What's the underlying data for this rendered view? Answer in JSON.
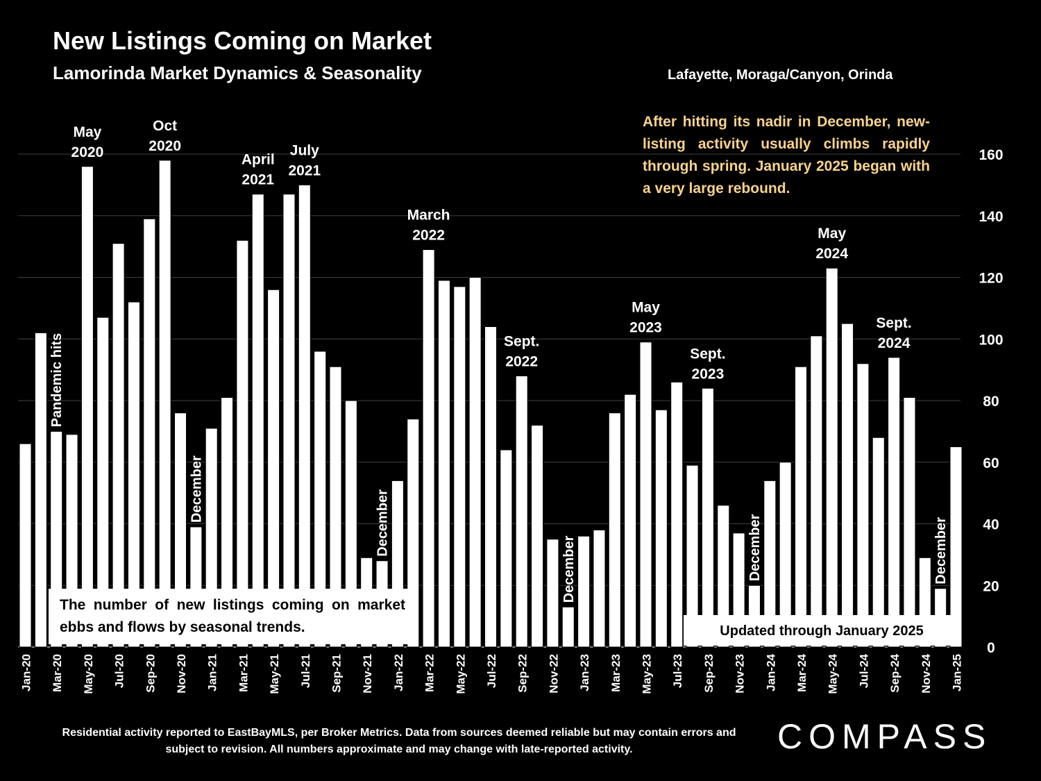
{
  "header": {
    "title": "New Listings Coming on Market",
    "subtitle": "Lamorinda Market Dynamics & Seasonality",
    "region": "Lafayette, Moraga/Canyon, Orinda"
  },
  "insight": "After hitting its nadir in December, new-listing activity usually climbs rapidly through spring. January 2025 began with a very large rebound.",
  "note_box": "The number of new listings coming on market ebbs and flows by seasonal trends.",
  "update_box": "Updated through January 2025",
  "footer": "Residential activity reported to EastBayMLS, per Broker Metrics. Data from sources deemed reliable but may contain errors and subject to revision. All numbers approximate and may change with late-reported activity.",
  "brand": "COMPASS",
  "colors": {
    "background": "#000000",
    "bars": "#ffffff",
    "gridline": "#404040",
    "insight_text": "#f9d38b"
  },
  "chart_data": {
    "type": "bar",
    "months": [
      "Jan-20",
      "Feb-20",
      "Mar-20",
      "Apr-20",
      "May-20",
      "Jun-20",
      "Jul-20",
      "Aug-20",
      "Sep-20",
      "Oct-20",
      "Nov-20",
      "Dec-20",
      "Jan-21",
      "Feb-21",
      "Mar-21",
      "Apr-21",
      "May-21",
      "Jun-21",
      "Jul-21",
      "Aug-21",
      "Sep-21",
      "Oct-21",
      "Nov-21",
      "Dec-21",
      "Jan-22",
      "Feb-22",
      "Mar-22",
      "Apr-22",
      "May-22",
      "Jun-22",
      "Jul-22",
      "Aug-22",
      "Sep-22",
      "Oct-22",
      "Nov-22",
      "Dec-22",
      "Jan-23",
      "Feb-23",
      "Mar-23",
      "Apr-23",
      "May-23",
      "Jun-23",
      "Jul-23",
      "Aug-23",
      "Sep-23",
      "Oct-23",
      "Nov-23",
      "Dec-23",
      "Jan-24",
      "Feb-24",
      "Mar-24",
      "Apr-24",
      "May-24",
      "Jun-24",
      "Jul-24",
      "Aug-24",
      "Sep-24",
      "Oct-24",
      "Nov-24",
      "Dec-24",
      "Jan-25"
    ],
    "values": [
      66,
      102,
      70,
      69,
      156,
      107,
      131,
      112,
      139,
      158,
      76,
      39,
      71,
      81,
      132,
      147,
      116,
      147,
      150,
      96,
      91,
      80,
      29,
      28,
      54,
      74,
      129,
      119,
      117,
      120,
      104,
      64,
      88,
      72,
      35,
      13,
      36,
      38,
      76,
      82,
      99,
      77,
      86,
      59,
      84,
      46,
      37,
      20,
      54,
      60,
      91,
      101,
      123,
      105,
      92,
      68,
      94,
      81,
      29,
      19,
      65
    ],
    "x_tick_labels": [
      "Jan-20",
      "Mar-20",
      "May-20",
      "Jul-20",
      "Sep-20",
      "Nov-20",
      "Jan-21",
      "Mar-21",
      "May-21",
      "Jul-21",
      "Sep-21",
      "Nov-21",
      "Jan-22",
      "Mar-22",
      "May-22",
      "Jul-22",
      "Sep-22",
      "Nov-22",
      "Jan-23",
      "Mar-23",
      "May-23",
      "Jul-23",
      "Sep-23",
      "Nov-23",
      "Jan-24",
      "Mar-24",
      "May-24",
      "Jul-24",
      "Sep-24",
      "Nov-24",
      "Jan-25"
    ],
    "y_ticks": [
      0,
      20,
      40,
      60,
      80,
      100,
      120,
      140,
      160
    ],
    "ylim": [
      0,
      160
    ],
    "grid": true,
    "annotations": [
      {
        "month": "May-20",
        "lines": [
          "May",
          "2020"
        ]
      },
      {
        "month": "Oct-20",
        "lines": [
          "Oct",
          "2020"
        ]
      },
      {
        "month": "Apr-21",
        "lines": [
          "April",
          "2021"
        ]
      },
      {
        "month": "Jul-21",
        "lines": [
          "July",
          "2021"
        ]
      },
      {
        "month": "Mar-22",
        "lines": [
          "March",
          "2022"
        ]
      },
      {
        "month": "Sep-22",
        "lines": [
          "Sept.",
          "2022"
        ]
      },
      {
        "month": "May-23",
        "lines": [
          "May",
          "2023"
        ]
      },
      {
        "month": "Sep-23",
        "lines": [
          "Sept.",
          "2023"
        ]
      },
      {
        "month": "May-24",
        "lines": [
          "May",
          "2024"
        ]
      },
      {
        "month": "Sep-24",
        "lines": [
          "Sept.",
          "2024"
        ]
      }
    ],
    "vertical_annotations": [
      {
        "month": "Mar-20",
        "text": "Pandemic hits"
      },
      {
        "month": "Dec-20",
        "text": "December"
      },
      {
        "month": "Dec-21",
        "text": "December"
      },
      {
        "month": "Dec-22",
        "text": "December"
      },
      {
        "month": "Dec-23",
        "text": "December"
      },
      {
        "month": "Dec-24",
        "text": "December"
      }
    ]
  }
}
